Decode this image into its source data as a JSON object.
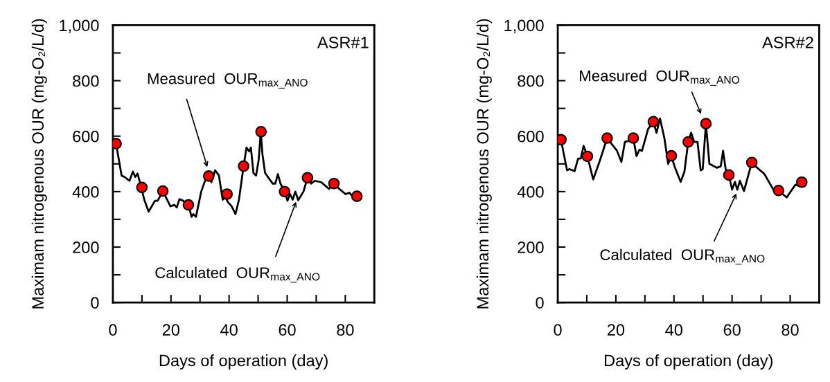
{
  "chart_data": [
    {
      "type": "line",
      "ylabel": "Maximam nitrogenous OUR (mg-O₂/L/d)",
      "xlabel": "Days of operation (day)",
      "xlim": [
        0,
        90
      ],
      "xticks": [
        0,
        {
          "value": 10,
          "label": null
        },
        20,
        {
          "value": 30,
          "label": null
        },
        40,
        {
          "value": 50,
          "label": null
        },
        60,
        {
          "value": 70,
          "label": null
        },
        80
      ],
      "ylim": [
        0,
        1000
      ],
      "yticks": [
        0,
        {
          "value": 100,
          "label": null
        },
        200,
        {
          "value": 300,
          "label": null
        },
        400,
        {
          "value": 500,
          "label": null
        },
        600,
        {
          "value": 700,
          "label": null
        },
        800,
        {
          "value": 900,
          "label": null
        },
        {
          "value": 1000,
          "label": "1,000"
        }
      ],
      "grid": false,
      "legend": false,
      "annotations": [
        "ASR#1",
        {
          "text": "Measured  OUR$_{max_ANO}$",
          "x": 32.7,
          "y": 482
        },
        {
          "text": "Calculated  OUR$_{max_ANO}$",
          "x": 63.3,
          "y": 370
        }
      ],
      "series": [
        {
          "color": "#000000",
          "marker": "none",
          "line_style": "solid",
          "x": [
            1.1,
            3,
            4,
            5.7,
            6.9,
            7.7,
            8.5,
            9.7,
            10.8,
            12.3,
            14.5,
            15.4,
            17.2,
            19.8,
            21.1,
            22,
            22.9,
            24.2,
            26,
            27.1,
            27.7,
            28.6,
            30.4,
            32.1,
            33,
            33.9,
            35.2,
            36.5,
            37.8,
            38.7,
            39.6,
            40.9,
            42.2,
            43.4,
            45,
            46,
            46.9,
            47.5,
            48.4,
            49.3,
            50.2,
            50.9,
            51.5,
            52.4,
            55,
            55.9,
            56.8,
            57.7,
            59.1,
            60.1,
            61,
            61.9,
            62.8,
            63.8,
            65.6,
            67,
            68.2,
            69.5,
            71.7,
            74.4,
            76.1,
            77.9,
            80.1,
            81.4,
            82.7,
            84
          ],
          "values": [
            573,
            458,
            453,
            439,
            472,
            453,
            465,
            419,
            371,
            328,
            367,
            367,
            402,
            347,
            352,
            343,
            373,
            367,
            352,
            309,
            319,
            309,
            400,
            450,
            456,
            434,
            477,
            458,
            371,
            381,
            362,
            347,
            319,
            371,
            492,
            559,
            545,
            559,
            467,
            458,
            515,
            616,
            534,
            467,
            429,
            429,
            463,
            429,
            400,
            367,
            391,
            371,
            400,
            369,
            400,
            450,
            429,
            439,
            434,
            410,
            429,
            410,
            391,
            396,
            381,
            383
          ]
        },
        {
          "type": "scatter",
          "color": "#ff0000",
          "marker": "circle",
          "x": [
            1.1,
            10,
            17.2,
            26,
            33,
            39.3,
            45,
            51,
            59.1,
            67,
            76.1,
            84
          ],
          "values": [
            573,
            415,
            402,
            352,
            456,
            391,
            492,
            616,
            400,
            450,
            429,
            383
          ]
        }
      ]
    },
    {
      "type": "line",
      "ylabel": "Maximam nitrogenous OUR (mg-O₂/L/d)",
      "xlabel": "Days of operation (day)",
      "xlim": [
        0,
        90
      ],
      "xticks": [
        0,
        {
          "value": 10,
          "label": null
        },
        20,
        {
          "value": 30,
          "label": null
        },
        40,
        {
          "value": 50,
          "label": null
        },
        60,
        {
          "value": 70,
          "label": null
        },
        80
      ],
      "ylim": [
        0,
        1000
      ],
      "yticks": [
        0,
        {
          "value": 100,
          "label": null
        },
        200,
        {
          "value": 300,
          "label": null
        },
        400,
        {
          "value": 500,
          "label": null
        },
        600,
        {
          "value": 700,
          "label": null
        },
        800,
        {
          "value": 900,
          "label": null
        },
        {
          "value": 1000,
          "label": "1,000"
        }
      ],
      "grid": false,
      "legend": false,
      "annotations": [
        "ASR#2",
        {
          "text": "Measured  OUR$_{max_ANO}$",
          "x": 49.6,
          "y": 673
        },
        {
          "text": "Calculated  OUR$_{max_ANO}$",
          "x": 61.8,
          "y": 400
        }
      ],
      "series": [
        {
          "color": "#000000",
          "marker": "none",
          "line_style": "solid",
          "x": [
            1.1,
            3.2,
            4,
            5.8,
            7,
            7.9,
            8.9,
            10.2,
            12.2,
            14.4,
            17,
            20.4,
            21.9,
            23.1,
            24.7,
            26,
            27.1,
            28.1,
            29,
            31.1,
            32.9,
            34,
            35.2,
            36.7,
            38,
            39.1,
            40.2,
            42.3,
            43.6,
            44.9,
            45.9,
            47,
            48.1,
            49.2,
            49.9,
            51,
            52.2,
            54.8,
            56.1,
            56.9,
            57.8,
            58.9,
            60,
            61,
            61.8,
            62.7,
            64.1,
            66.8,
            68.1,
            71.1,
            74.5,
            76,
            78.8,
            81.8,
            82.9,
            84
          ],
          "values": [
            587,
            477,
            481,
            474,
            519,
            519,
            565,
            527,
            444,
            509,
            593,
            547,
            507,
            579,
            584,
            593,
            528,
            551,
            547,
            626,
            652,
            612,
            664,
            593,
            500,
            529,
            491,
            435,
            472,
            579,
            612,
            579,
            579,
            477,
            481,
            645,
            500,
            486,
            491,
            547,
            481,
            460,
            407,
            435,
            407,
            439,
            402,
            505,
            491,
            464,
            402,
            404,
            379,
            425,
            421,
            434
          ]
        },
        {
          "type": "scatter",
          "color": "#ff0000",
          "marker": "circle",
          "x": [
            1.1,
            10.2,
            17,
            26,
            32.9,
            39.1,
            44.9,
            51,
            58.9,
            66.8,
            76,
            84
          ],
          "values": [
            587,
            527,
            593,
            593,
            652,
            529,
            579,
            645,
            460,
            505,
            404,
            434
          ]
        }
      ]
    }
  ]
}
